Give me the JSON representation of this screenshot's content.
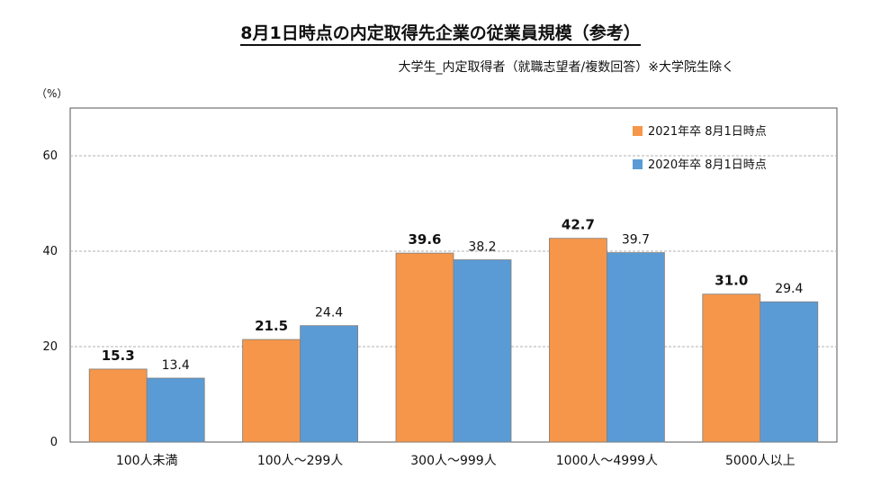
{
  "chart_data": {
    "type": "bar",
    "title": "8月1日時点の内定取得先企業の従業員規模（参考）",
    "subtitle": "大学生_内定取得者（就職志望者/複数回答）※大学院生除く",
    "unit_label": "（%）",
    "categories": [
      "100人未満",
      "100人～299人",
      "300人～999人",
      "1000人～4999人",
      "5000人以上"
    ],
    "series": [
      {
        "name": "2021年卒  8月1日時点",
        "values": [
          15.3,
          21.5,
          39.6,
          42.7,
          31.0
        ],
        "labels": [
          "15.3",
          "21.5",
          "39.6",
          "42.7",
          "31.0"
        ],
        "color": "#f5964a",
        "label_bold": true
      },
      {
        "name": "2020年卒  8月1日時点",
        "values": [
          13.4,
          24.4,
          38.2,
          39.7,
          29.4
        ],
        "labels": [
          "13.4",
          "24.4",
          "38.2",
          "39.7",
          "29.4"
        ],
        "color": "#5b9bd5",
        "label_bold": false
      }
    ],
    "ylim": [
      0,
      70
    ],
    "yticks": [
      0,
      20,
      40,
      60
    ],
    "ytick_labels": [
      "0",
      "20",
      "40",
      "60"
    ],
    "grid": true,
    "legend_position": "top-right"
  }
}
